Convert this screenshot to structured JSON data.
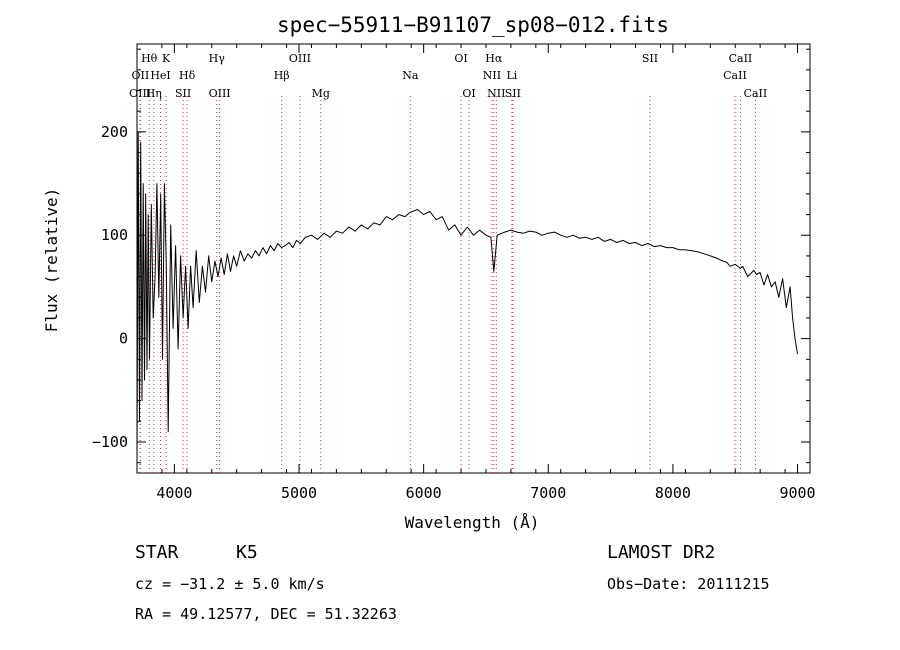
{
  "chart_data": {
    "type": "line",
    "title": "spec−55911−B91107_sp08−012.fits",
    "xlabel": "Wavelength (Å)",
    "ylabel": "Flux (relative)",
    "xlim": [
      3700,
      9100
    ],
    "ylim": [
      -130,
      285
    ],
    "xticks": [
      4000,
      5000,
      6000,
      7000,
      8000,
      9000
    ],
    "yticks": [
      -100,
      0,
      100,
      200
    ],
    "ytick_labels": [
      "−100",
      "0",
      "100",
      "200"
    ],
    "grid": false,
    "series": [
      {
        "x": [
          3700,
          3710,
          3720,
          3730,
          3740,
          3750,
          3760,
          3770,
          3780,
          3790,
          3800,
          3815,
          3830,
          3845,
          3860,
          3875,
          3890,
          3905,
          3920,
          3935,
          3950,
          3970,
          3990,
          4010,
          4030,
          4050,
          4070,
          4090,
          4110,
          4130,
          4150,
          4175,
          4200,
          4225,
          4250,
          4275,
          4300,
          4325,
          4350,
          4375,
          4400,
          4425,
          4450,
          4475,
          4500,
          4530,
          4560,
          4590,
          4620,
          4650,
          4680,
          4710,
          4740,
          4770,
          4800,
          4830,
          4860,
          4890,
          4920,
          4950,
          4980,
          5010,
          5050,
          5100,
          5150,
          5200,
          5250,
          5300,
          5350,
          5400,
          5450,
          5500,
          5550,
          5600,
          5650,
          5700,
          5750,
          5800,
          5850,
          5890,
          5950,
          6000,
          6050,
          6100,
          6150,
          6200,
          6250,
          6300,
          6350,
          6400,
          6450,
          6500,
          6540,
          6563,
          6590,
          6650,
          6700,
          6750,
          6800,
          6850,
          6900,
          6950,
          7000,
          7050,
          7100,
          7150,
          7200,
          7250,
          7300,
          7350,
          7400,
          7450,
          7500,
          7550,
          7600,
          7650,
          7700,
          7750,
          7800,
          7850,
          7900,
          7950,
          8000,
          8050,
          8100,
          8150,
          8200,
          8250,
          8300,
          8350,
          8400,
          8430,
          8460,
          8500,
          8540,
          8560,
          8600,
          8650,
          8670,
          8700,
          8730,
          8760,
          8790,
          8820,
          8850,
          8880,
          8910,
          8940,
          8960,
          8980,
          9000
        ],
        "y": [
          -120,
          200,
          -80,
          190,
          -60,
          150,
          -40,
          140,
          -30,
          120,
          -20,
          130,
          20,
          60,
          150,
          40,
          140,
          -20,
          150,
          70,
          -90,
          110,
          10,
          90,
          -10,
          80,
          20,
          70,
          10,
          70,
          30,
          85,
          35,
          70,
          45,
          80,
          55,
          75,
          60,
          78,
          62,
          82,
          65,
          80,
          70,
          85,
          75,
          82,
          78,
          85,
          80,
          88,
          82,
          90,
          85,
          92,
          88,
          90,
          93,
          88,
          95,
          92,
          98,
          100,
          96,
          102,
          98,
          104,
          102,
          108,
          104,
          110,
          106,
          112,
          110,
          118,
          115,
          120,
          118,
          122,
          125,
          120,
          123,
          115,
          118,
          105,
          110,
          100,
          108,
          100,
          105,
          100,
          98,
          65,
          100,
          103,
          105,
          103,
          102,
          104,
          103,
          100,
          102,
          103,
          100,
          98,
          100,
          97,
          98,
          96,
          98,
          94,
          96,
          93,
          95,
          92,
          93,
          90,
          92,
          89,
          90,
          88,
          88,
          86,
          86,
          85,
          84,
          82,
          80,
          78,
          75,
          74,
          70,
          72,
          68,
          70,
          60,
          66,
          62,
          64,
          52,
          62,
          50,
          55,
          40,
          58,
          30,
          50,
          20,
          0,
          -15
        ]
      }
    ],
    "line_markers": [
      {
        "label": "Hθ",
        "x": 3798,
        "row": 1
      },
      {
        "label": "OII",
        "x": 3727,
        "row": 2
      },
      {
        "label": "OIII",
        "x": 3725,
        "row": 3
      },
      {
        "label": "K",
        "x": 3934,
        "row": 1
      },
      {
        "label": "HeI",
        "x": 3889,
        "row": 2
      },
      {
        "label": "Hη",
        "x": 3835,
        "row": 3
      },
      {
        "label": "Hδ",
        "x": 4102,
        "row": 2
      },
      {
        "label": "SII",
        "x": 4070,
        "row": 3
      },
      {
        "label": "Hγ",
        "x": 4340,
        "row": 1
      },
      {
        "label": "OIII",
        "x": 4363,
        "row": 3
      },
      {
        "label": "OIII",
        "x": 5007,
        "row": 1
      },
      {
        "label": "Hβ",
        "x": 4861,
        "row": 2
      },
      {
        "label": "Mg",
        "x": 5175,
        "row": 3
      },
      {
        "label": "Na",
        "x": 5893,
        "row": 2
      },
      {
        "label": "OI",
        "x": 6300,
        "row": 1
      },
      {
        "label": "OI",
        "x": 6364,
        "row": 3
      },
      {
        "label": "Hα",
        "x": 6563,
        "row": 1
      },
      {
        "label": "NII",
        "x": 6548,
        "row": 2
      },
      {
        "label": "NII",
        "x": 6583,
        "row": 3
      },
      {
        "label": "SII",
        "x": 6716,
        "row": 3
      },
      {
        "label": "Li",
        "x": 6708,
        "row": 2
      },
      {
        "label": "SII",
        "x": 7816,
        "row": 1
      },
      {
        "label": "CaII",
        "x": 8542,
        "row": 1
      },
      {
        "label": "CaII",
        "x": 8498,
        "row": 2
      },
      {
        "label": "CaII",
        "x": 8662,
        "row": 3
      }
    ]
  },
  "footer": {
    "object_class": "STAR",
    "subclass": "K5",
    "survey": "LAMOST DR2",
    "redshift": "cz = −31.2 ± 5.0 km/s",
    "obs_date": "Obs−Date: 20111215",
    "coords": "RA =  49.12577, DEC =  51.32263"
  }
}
